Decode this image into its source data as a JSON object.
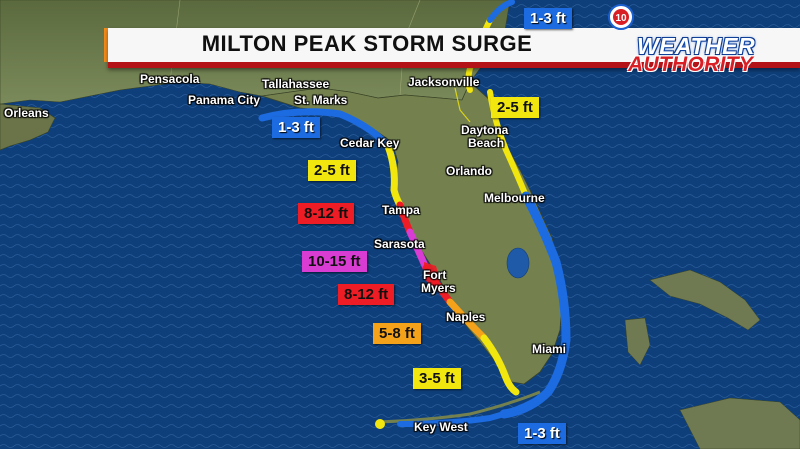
{
  "title": "MILTON PEAK STORM SURGE",
  "logo": {
    "line1": "WEATHER",
    "line2": "AUTHORITY",
    "channel": "10"
  },
  "colors": {
    "ocean": "#0f3f7a",
    "land": "#6f7a52",
    "band_blue": "#1d6be0",
    "band_yellow": "#f2e60f",
    "band_red": "#ee1c24",
    "band_magenta": "#d93cd3",
    "band_orange": "#f5a21b",
    "banner_red": "#b31217"
  },
  "cities": [
    {
      "id": "orleans",
      "label": "Orleans"
    },
    {
      "id": "pensacola",
      "label": "Pensacola"
    },
    {
      "id": "tallahassee",
      "label": "Tallahassee"
    },
    {
      "id": "panama-city",
      "label": "Panama City"
    },
    {
      "id": "st-marks",
      "label": "St. Marks"
    },
    {
      "id": "jacksonville",
      "label": "Jacksonville"
    },
    {
      "id": "daytona",
      "label": "Daytona"
    },
    {
      "id": "beach",
      "label": "Beach"
    },
    {
      "id": "cedar-key",
      "label": "Cedar Key"
    },
    {
      "id": "orlando",
      "label": "Orlando"
    },
    {
      "id": "melbourne",
      "label": "Melbourne"
    },
    {
      "id": "tampa",
      "label": "Tampa"
    },
    {
      "id": "sarasota",
      "label": "Sarasota"
    },
    {
      "id": "fort",
      "label": "Fort"
    },
    {
      "id": "myers",
      "label": "Myers"
    },
    {
      "id": "naples",
      "label": "Naples"
    },
    {
      "id": "miami",
      "label": "Miami"
    },
    {
      "id": "key-west",
      "label": "Key West"
    }
  ],
  "surge_labels": [
    {
      "id": "ne-georgia",
      "text": "1-3 ft",
      "level": "blue"
    },
    {
      "id": "ne-florida",
      "text": "2-5 ft",
      "level": "yellow"
    },
    {
      "id": "big-bend",
      "text": "1-3 ft",
      "level": "blue"
    },
    {
      "id": "nature-coast",
      "text": "2-5 ft",
      "level": "yellow"
    },
    {
      "id": "tampa-bay",
      "text": "8-12 ft",
      "level": "red"
    },
    {
      "id": "sarasota-coast",
      "text": "10-15 ft",
      "level": "magenta"
    },
    {
      "id": "fort-myers-coast",
      "text": "8-12 ft",
      "level": "red"
    },
    {
      "id": "naples-coast",
      "text": "5-8 ft",
      "level": "orange"
    },
    {
      "id": "sw-florida",
      "text": "3-5 ft",
      "level": "yellow"
    },
    {
      "id": "florida-keys",
      "text": "1-3 ft",
      "level": "blue"
    }
  ]
}
